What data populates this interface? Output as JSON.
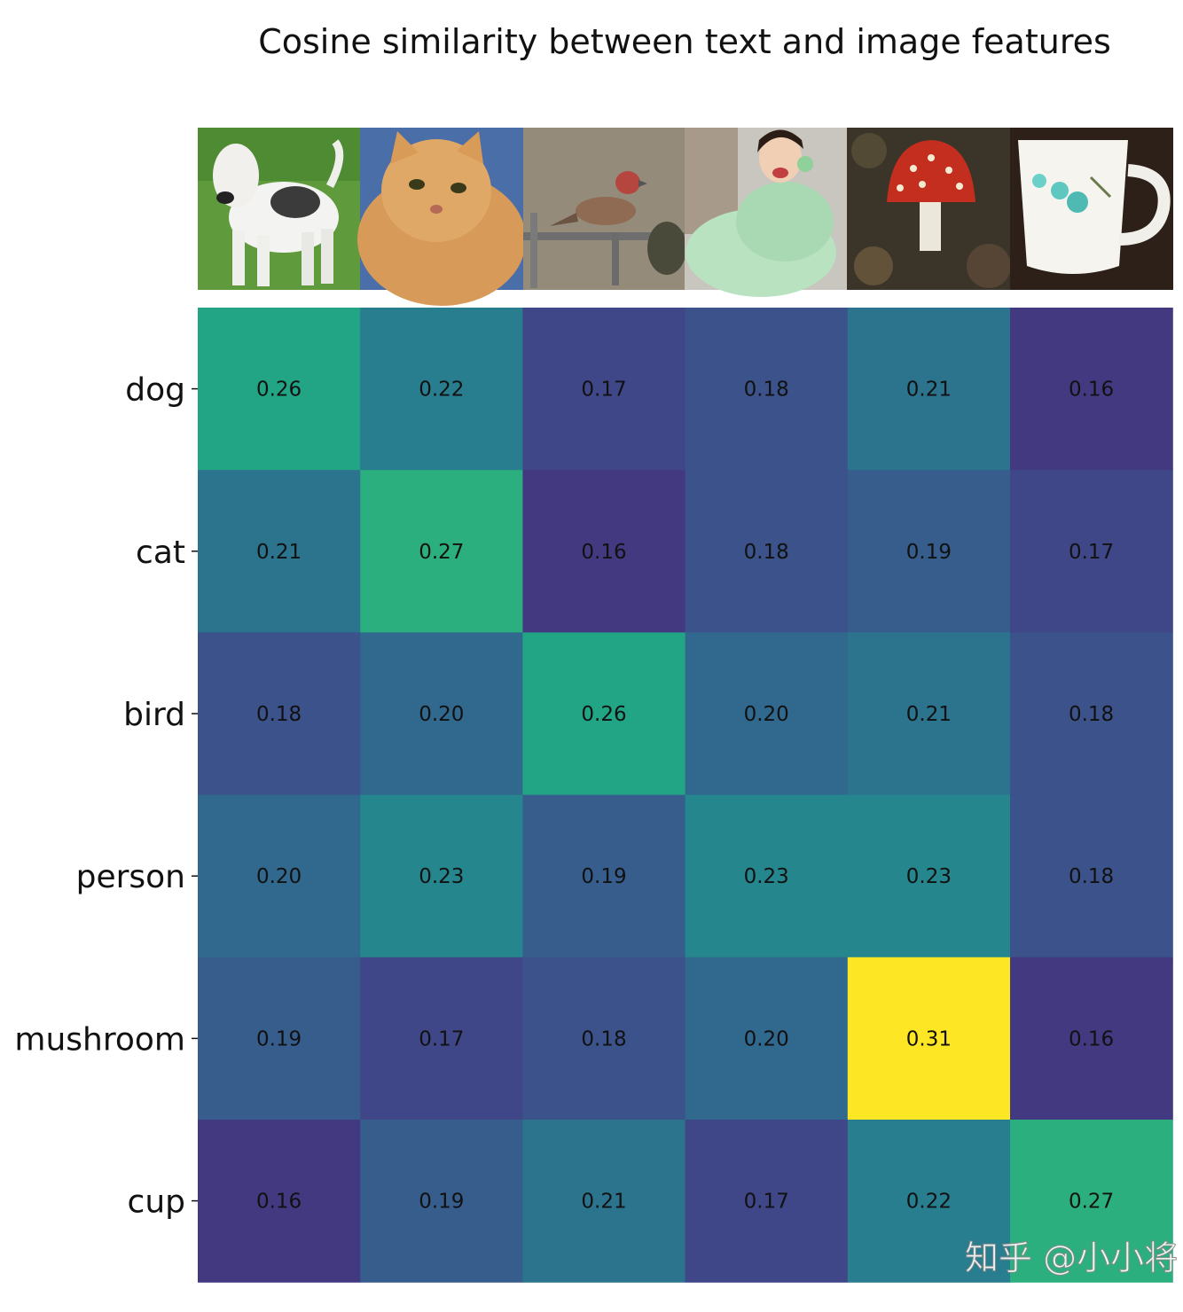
{
  "chart_data": {
    "type": "heatmap",
    "title": "Cosine similarity between text and image features",
    "rows": [
      "dog",
      "cat",
      "bird",
      "person",
      "mushroom",
      "cup"
    ],
    "image_columns": [
      "dog-photo-icon",
      "cat-photo-icon",
      "bird-photo-icon",
      "person-photo-icon",
      "mushroom-photo-icon",
      "cup-photo-icon"
    ],
    "values": [
      [
        0.26,
        0.22,
        0.17,
        0.18,
        0.21,
        0.16
      ],
      [
        0.21,
        0.27,
        0.16,
        0.18,
        0.19,
        0.17
      ],
      [
        0.18,
        0.2,
        0.26,
        0.2,
        0.21,
        0.18
      ],
      [
        0.2,
        0.23,
        0.19,
        0.23,
        0.23,
        0.18
      ],
      [
        0.19,
        0.17,
        0.18,
        0.2,
        0.31,
        0.16
      ],
      [
        0.16,
        0.19,
        0.21,
        0.17,
        0.22,
        0.27
      ]
    ],
    "value_labels": [
      [
        "0.26",
        "0.22",
        "0.17",
        "0.18",
        "0.21",
        "0.16"
      ],
      [
        "0.21",
        "0.27",
        "0.16",
        "0.18",
        "0.19",
        "0.17"
      ],
      [
        "0.18",
        "0.20",
        "0.26",
        "0.20",
        "0.21",
        "0.18"
      ],
      [
        "0.20",
        "0.23",
        "0.19",
        "0.23",
        "0.23",
        "0.18"
      ],
      [
        "0.19",
        "0.17",
        "0.18",
        "0.20",
        "0.31",
        "0.16"
      ],
      [
        "0.16",
        "0.19",
        "0.21",
        "0.17",
        "0.22",
        "0.27"
      ]
    ],
    "colormap": "viridis",
    "color_range": [
      0.12,
      0.31
    ]
  },
  "watermark": "知乎 @小小将"
}
